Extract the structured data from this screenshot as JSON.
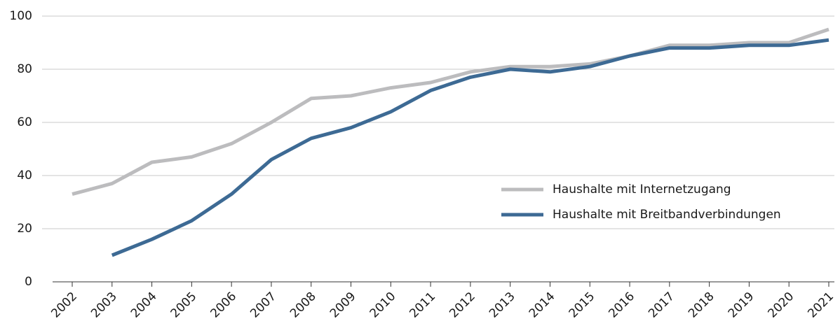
{
  "chart_data": {
    "type": "line",
    "categories": [
      "2002",
      "2003",
      "2004",
      "2005",
      "2006",
      "2007",
      "2008",
      "2009",
      "2010",
      "2011",
      "2012",
      "2013",
      "2014",
      "2015",
      "2016",
      "2017",
      "2018",
      "2019",
      "2020",
      "2021"
    ],
    "series": [
      {
        "name": "Haushalte mit Internetzugang",
        "color": "#bcbcbe",
        "values": [
          33,
          37,
          45,
          47,
          52,
          60,
          69,
          70,
          73,
          75,
          79,
          81,
          81,
          82,
          85,
          89,
          89,
          90,
          90,
          95
        ]
      },
      {
        "name": "Haushalte mit Breitbandverbindungen",
        "color": "#3d6a94",
        "values": [
          null,
          10,
          16,
          23,
          33,
          46,
          54,
          58,
          64,
          72,
          77,
          80,
          79,
          81,
          85,
          88,
          88,
          89,
          89,
          91
        ]
      }
    ],
    "ylim": [
      0,
      100
    ],
    "yticks": [
      0,
      20,
      40,
      60,
      80,
      100
    ],
    "grid": true
  }
}
